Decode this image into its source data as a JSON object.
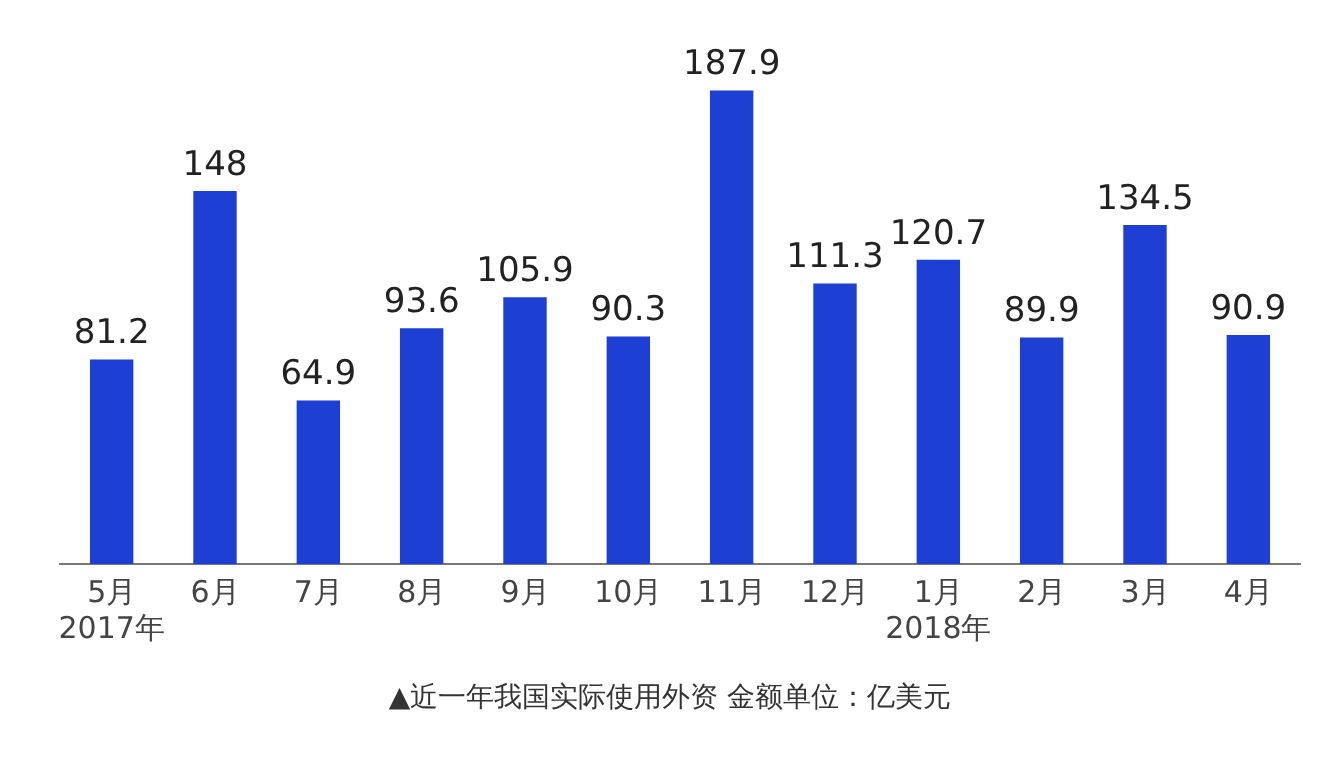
{
  "chart_data": {
    "type": "bar",
    "categories": [
      "5月\n2017年",
      "6月",
      "7月",
      "8月",
      "9月",
      "10月",
      "11月",
      "12月",
      "1月\n2018年",
      "2月",
      "3月",
      "4月"
    ],
    "values": [
      81.2,
      148,
      64.9,
      93.6,
      105.9,
      90.3,
      187.9,
      111.3,
      120.7,
      89.9,
      134.5,
      90.9
    ],
    "color": "#1d3fd4",
    "tick_labels": "x",
    "data_labels": true,
    "grid": false,
    "legend": false,
    "annotations": [
      "▲近一年我国实际使用外资 金额单位：亿美元"
    ]
  }
}
